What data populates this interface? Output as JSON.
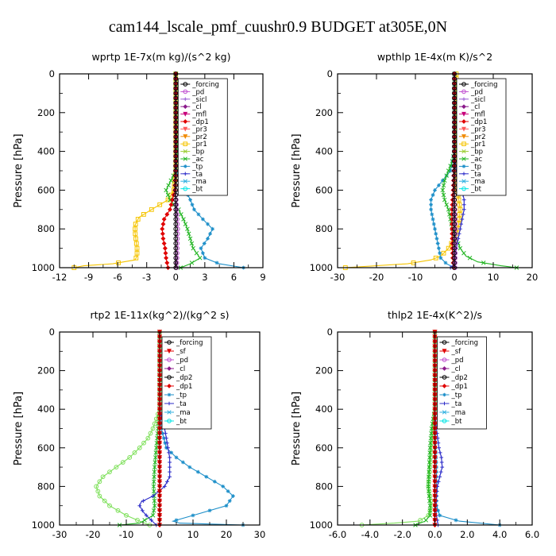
{
  "figure_title": "cam144_lscale_pmf_cuushr0.9  BUDGET at305E,0N",
  "chart_data": [
    {
      "type": "line",
      "title": "wprtp   1E-7x(m kg)/(s^2 kg)",
      "ylabel": "Pressure [hPa]",
      "xlim": [
        -12,
        9
      ],
      "ylim": [
        1000,
        0
      ],
      "xticks": [
        -12,
        -9,
        -6,
        -3,
        0,
        3,
        6,
        9
      ],
      "xtick_labels": [
        "-12",
        "-9",
        "-6",
        "-3",
        "0",
        "3",
        "6",
        "9"
      ],
      "yticks": [
        0,
        200,
        400,
        600,
        800,
        1000
      ],
      "ytick_labels": [
        "0",
        "200",
        "400",
        "600",
        "800",
        "1000"
      ],
      "legend": [
        "_forcing",
        "_pd",
        "_sicl",
        "_cl",
        "_mfl",
        "_dp1",
        "_pr3",
        "_pr2",
        "_pr1",
        "_bp",
        "_ac",
        "_tp",
        "_ta",
        "_ma",
        "_bt"
      ],
      "series": [
        {
          "name": "_pr1",
          "color": "#f5c400",
          "marker": "square",
          "pressure": [
            0,
            200,
            400,
            500,
            600,
            650,
            700,
            740,
            780,
            820,
            860,
            900,
            940,
            960,
            980,
            990,
            1000
          ],
          "values": [
            0,
            0,
            0,
            0,
            -0.2,
            -0.8,
            -2.5,
            -3.8,
            -4.2,
            -4.2,
            -4.1,
            -4.0,
            -4.0,
            -4.2,
            -6.5,
            -9.5,
            -10.5
          ]
        },
        {
          "name": "_ac",
          "color": "#22b522",
          "marker": "x",
          "pressure": [
            0,
            200,
            400,
            500,
            550,
            600,
            650,
            700,
            750,
            800,
            850,
            900,
            950,
            980,
            1000
          ],
          "values": [
            0,
            0,
            0.2,
            0,
            -0.5,
            -1.0,
            -0.6,
            0.3,
            0.8,
            1.2,
            1.5,
            1.8,
            2.5,
            1.5,
            0.5
          ]
        },
        {
          "name": "_tp",
          "color": "#1d8fc9",
          "marker": "star",
          "pressure": [
            0,
            200,
            400,
            500,
            550,
            600,
            650,
            700,
            750,
            800,
            850,
            900,
            950,
            980,
            1000
          ],
          "values": [
            0,
            0,
            0,
            0.1,
            0.4,
            1.0,
            1.5,
            1.9,
            2.8,
            3.8,
            3.3,
            2.6,
            3.0,
            4.5,
            7.0
          ]
        },
        {
          "name": "_dp1",
          "color": "#e00000",
          "marker": "diamond",
          "pressure": [
            0,
            200,
            400,
            600,
            700,
            750,
            800,
            850,
            900,
            950,
            1000
          ],
          "values": [
            0,
            0,
            0,
            -0.1,
            -0.6,
            -1.2,
            -1.4,
            -1.3,
            -1.1,
            -1.0,
            -0.8
          ]
        },
        {
          "name": "_pd",
          "color": "#c050d0",
          "marker": "circle",
          "pressure": [
            0,
            200,
            400,
            600,
            800,
            1000
          ],
          "values": [
            0,
            0,
            0,
            0,
            0.2,
            0.1
          ]
        },
        {
          "name": "_forcing",
          "color": "#000000",
          "marker": "circle",
          "pressure": [
            0,
            200,
            400,
            600,
            800,
            1000
          ],
          "values": [
            0,
            0,
            0,
            0,
            0,
            0
          ]
        }
      ]
    },
    {
      "type": "line",
      "title": "wpthlp   1E-4x(m K)/s^2",
      "ylabel": "Pressure [hPa]",
      "xlim": [
        -30,
        20
      ],
      "ylim": [
        1000,
        0
      ],
      "xticks": [
        -30,
        -20,
        -10,
        0,
        10,
        20
      ],
      "xtick_labels": [
        "-30",
        "-20",
        "-10",
        "0",
        "10",
        "20"
      ],
      "yticks": [
        0,
        200,
        400,
        600,
        800,
        1000
      ],
      "ytick_labels": [
        "0",
        "200",
        "400",
        "600",
        "800",
        "1000"
      ],
      "legend": [
        "_forcing",
        "_pd",
        "_sicl",
        "_cl",
        "_mfl",
        "_dp1",
        "_pr3",
        "_pr2",
        "_pr1",
        "_bp",
        "_ac",
        "_tp",
        "_ta",
        "_ma",
        "_bt"
      ],
      "series": [
        {
          "name": "_pr1",
          "color": "#f5c400",
          "marker": "square",
          "pressure": [
            0,
            200,
            400,
            500,
            600,
            700,
            800,
            850,
            900,
            940,
            960,
            980,
            1000
          ],
          "values": [
            0.5,
            0.5,
            0.5,
            0.5,
            0.8,
            1.5,
            1.0,
            0,
            -1.5,
            -3.5,
            -6.0,
            -12.0,
            -28.0
          ]
        },
        {
          "name": "_tp",
          "color": "#1d8fc9",
          "marker": "star",
          "pressure": [
            0,
            200,
            400,
            500,
            550,
            600,
            650,
            700,
            750,
            800,
            850,
            900,
            950,
            980,
            1000
          ],
          "values": [
            0,
            0,
            0,
            -1.0,
            -3.0,
            -5.0,
            -6.0,
            -6.0,
            -5.5,
            -5.0,
            -4.5,
            -4.0,
            -3.5,
            -2.0,
            0
          ]
        },
        {
          "name": "_ac",
          "color": "#22b522",
          "marker": "x",
          "pressure": [
            0,
            200,
            400,
            450,
            500,
            550,
            600,
            650,
            700,
            750,
            800,
            850,
            900,
            940,
            970,
            990,
            1000
          ],
          "values": [
            0,
            0,
            0,
            -0.5,
            -1.5,
            -2.5,
            -3.0,
            -2.5,
            -1.5,
            -1.0,
            -0.5,
            0.5,
            1.5,
            3.0,
            6.0,
            12.0,
            16.0
          ]
        },
        {
          "name": "_ta",
          "color": "#2c2cc9",
          "marker": "plus",
          "pressure": [
            0,
            200,
            400,
            500,
            550,
            600,
            650,
            700,
            750,
            800,
            850,
            900,
            950,
            980,
            1000
          ],
          "values": [
            0,
            0,
            0,
            0.5,
            1.0,
            2.0,
            2.5,
            2.5,
            2.0,
            1.5,
            1.0,
            0.5,
            0.2,
            0,
            -1.0
          ]
        },
        {
          "name": "_dp1",
          "color": "#e00000",
          "marker": "diamond",
          "pressure": [
            0,
            200,
            400,
            600,
            700,
            800,
            900,
            950,
            1000
          ],
          "values": [
            0,
            0,
            0,
            -0.3,
            -0.6,
            -0.6,
            -0.5,
            -0.4,
            -0.2
          ]
        },
        {
          "name": "_pd",
          "color": "#c050d0",
          "marker": "circle",
          "pressure": [
            0,
            200,
            400,
            600,
            800,
            1000
          ],
          "values": [
            0,
            0,
            0,
            0,
            0.3,
            0.2
          ]
        },
        {
          "name": "_forcing",
          "color": "#000000",
          "marker": "circle",
          "pressure": [
            0,
            200,
            400,
            600,
            800,
            1000
          ],
          "values": [
            0,
            0,
            0,
            0,
            0,
            0
          ]
        }
      ]
    },
    {
      "type": "line",
      "title": "rtp2   1E-11x(kg^2)/(kg^2 s)",
      "ylabel": "Pressure [hPa]",
      "xlim": [
        -30,
        30
      ],
      "ylim": [
        1000,
        0
      ],
      "xticks": [
        -30,
        -20,
        -10,
        0,
        10,
        20,
        30
      ],
      "xtick_labels": [
        "-30",
        "-20",
        "-10",
        "0",
        "10",
        "20",
        "30"
      ],
      "yticks": [
        0,
        200,
        400,
        600,
        800,
        1000
      ],
      "ytick_labels": [
        "0",
        "200",
        "400",
        "600",
        "800",
        "1000"
      ],
      "legend": [
        "_forcing",
        "_sf",
        "_pd",
        "_cl",
        "_dp2",
        "_dp1",
        "_tp",
        "_ta",
        "_ma",
        "_bt"
      ],
      "series": [
        {
          "name": "_dp1",
          "color": "#7ee05a",
          "marker": "circle",
          "pressure": [
            0,
            200,
            400,
            450,
            500,
            550,
            600,
            650,
            700,
            750,
            800,
            850,
            900,
            950,
            980,
            1000
          ],
          "values": [
            0,
            0,
            0,
            -1.0,
            -2.0,
            -3.5,
            -6.0,
            -9.0,
            -13.0,
            -17.0,
            -19.0,
            -18.0,
            -15.0,
            -10.0,
            -6.0,
            -3.0
          ]
        },
        {
          "name": "_dp2",
          "color": "#22b522",
          "marker": "x",
          "pressure": [
            0,
            200,
            400,
            500,
            600,
            700,
            800,
            900,
            950,
            990,
            1000
          ],
          "values": [
            0,
            0,
            0,
            -0.5,
            -1.0,
            -1.5,
            -1.8,
            -1.5,
            -2.0,
            -6.0,
            -12.0
          ]
        },
        {
          "name": "_tp",
          "color": "#1d8fc9",
          "marker": "star",
          "pressure": [
            0,
            200,
            400,
            500,
            600,
            650,
            700,
            750,
            800,
            850,
            900,
            950,
            980,
            990,
            1000
          ],
          "values": [
            0,
            0,
            0,
            0.5,
            2.0,
            5.0,
            9.0,
            14.0,
            19.0,
            22.0,
            20.0,
            10.0,
            4.0,
            6.0,
            25.0
          ]
        },
        {
          "name": "_ta",
          "color": "#2c2cc9",
          "marker": "plus",
          "pressure": [
            0,
            200,
            400,
            500,
            600,
            650,
            700,
            750,
            800,
            850,
            880,
            900,
            930,
            950,
            1000
          ],
          "values": [
            0,
            0,
            0,
            1.5,
            2.5,
            3.0,
            3.0,
            3.0,
            1.5,
            -2.0,
            -5.5,
            -6.0,
            -5.0,
            -4.0,
            -1.0
          ]
        },
        {
          "name": "_sf",
          "color": "#e00000",
          "marker": "triangle",
          "pressure": [
            0,
            200,
            400,
            600,
            800,
            1000
          ],
          "values": [
            0,
            0,
            0,
            0,
            0,
            0
          ]
        },
        {
          "name": "_forcing",
          "color": "#e00000",
          "marker": "diamond",
          "pressure": [
            0,
            200,
            400,
            600,
            800,
            1000
          ],
          "values": [
            0,
            0,
            0,
            0,
            0,
            0
          ]
        }
      ]
    },
    {
      "type": "line",
      "title": "thlp2   1E-4x(K^2)/s",
      "ylabel": "Pressure [hPa]",
      "xlim": [
        -6,
        6
      ],
      "ylim": [
        1000,
        0
      ],
      "xticks": [
        -6,
        -4,
        -2,
        0,
        2,
        4,
        6
      ],
      "xtick_labels": [
        "-6.0",
        "-4.0",
        "-2.0",
        "0.0",
        "2.0",
        "4.0",
        "6.0"
      ],
      "yticks": [
        0,
        200,
        400,
        600,
        800,
        1000
      ],
      "ytick_labels": [
        "0",
        "200",
        "400",
        "600",
        "800",
        "1000"
      ],
      "legend": [
        "_forcing",
        "_sf",
        "_pd",
        "_cl",
        "_dp2",
        "_dp1",
        "_tp",
        "_ta",
        "_ma",
        "_bt"
      ],
      "series": [
        {
          "name": "_dp1",
          "color": "#7ee05a",
          "marker": "circle",
          "pressure": [
            0,
            200,
            400,
            500,
            600,
            700,
            800,
            850,
            900,
            950,
            980,
            990,
            1000
          ],
          "values": [
            0,
            0,
            0,
            -0.1,
            -0.2,
            -0.3,
            -0.4,
            -0.3,
            -0.2,
            -0.4,
            -1.0,
            -2.5,
            -4.5
          ]
        },
        {
          "name": "_dp2",
          "color": "#22b522",
          "marker": "x",
          "pressure": [
            0,
            200,
            400,
            500,
            600,
            700,
            800,
            850,
            900,
            950,
            980,
            1000
          ],
          "values": [
            0,
            0,
            0,
            -0.2,
            -0.3,
            -0.35,
            -0.4,
            -0.35,
            -0.3,
            -0.3,
            -0.6,
            -1.2
          ]
        },
        {
          "name": "_tp",
          "color": "#1d8fc9",
          "marker": "star",
          "pressure": [
            0,
            200,
            400,
            600,
            700,
            800,
            900,
            950,
            980,
            1000
          ],
          "values": [
            0,
            0,
            0,
            0.05,
            0.1,
            0.1,
            0.1,
            0.3,
            1.5,
            4.0
          ]
        },
        {
          "name": "_ta",
          "color": "#2c2cc9",
          "marker": "plus",
          "pressure": [
            0,
            200,
            400,
            500,
            600,
            650,
            700,
            750,
            800,
            900,
            950,
            1000
          ],
          "values": [
            0,
            0,
            0,
            0.1,
            0.25,
            0.4,
            0.45,
            0.3,
            0.15,
            0.05,
            0.1,
            0.2
          ]
        },
        {
          "name": "_sf",
          "color": "#e00000",
          "marker": "triangle",
          "pressure": [
            0,
            200,
            400,
            600,
            800,
            1000
          ],
          "values": [
            0,
            0,
            0,
            0,
            0,
            0
          ]
        },
        {
          "name": "_forcing",
          "color": "#e00000",
          "marker": "diamond",
          "pressure": [
            0,
            200,
            400,
            600,
            800,
            1000
          ],
          "values": [
            0,
            0,
            0,
            0,
            0,
            0
          ]
        }
      ]
    }
  ]
}
